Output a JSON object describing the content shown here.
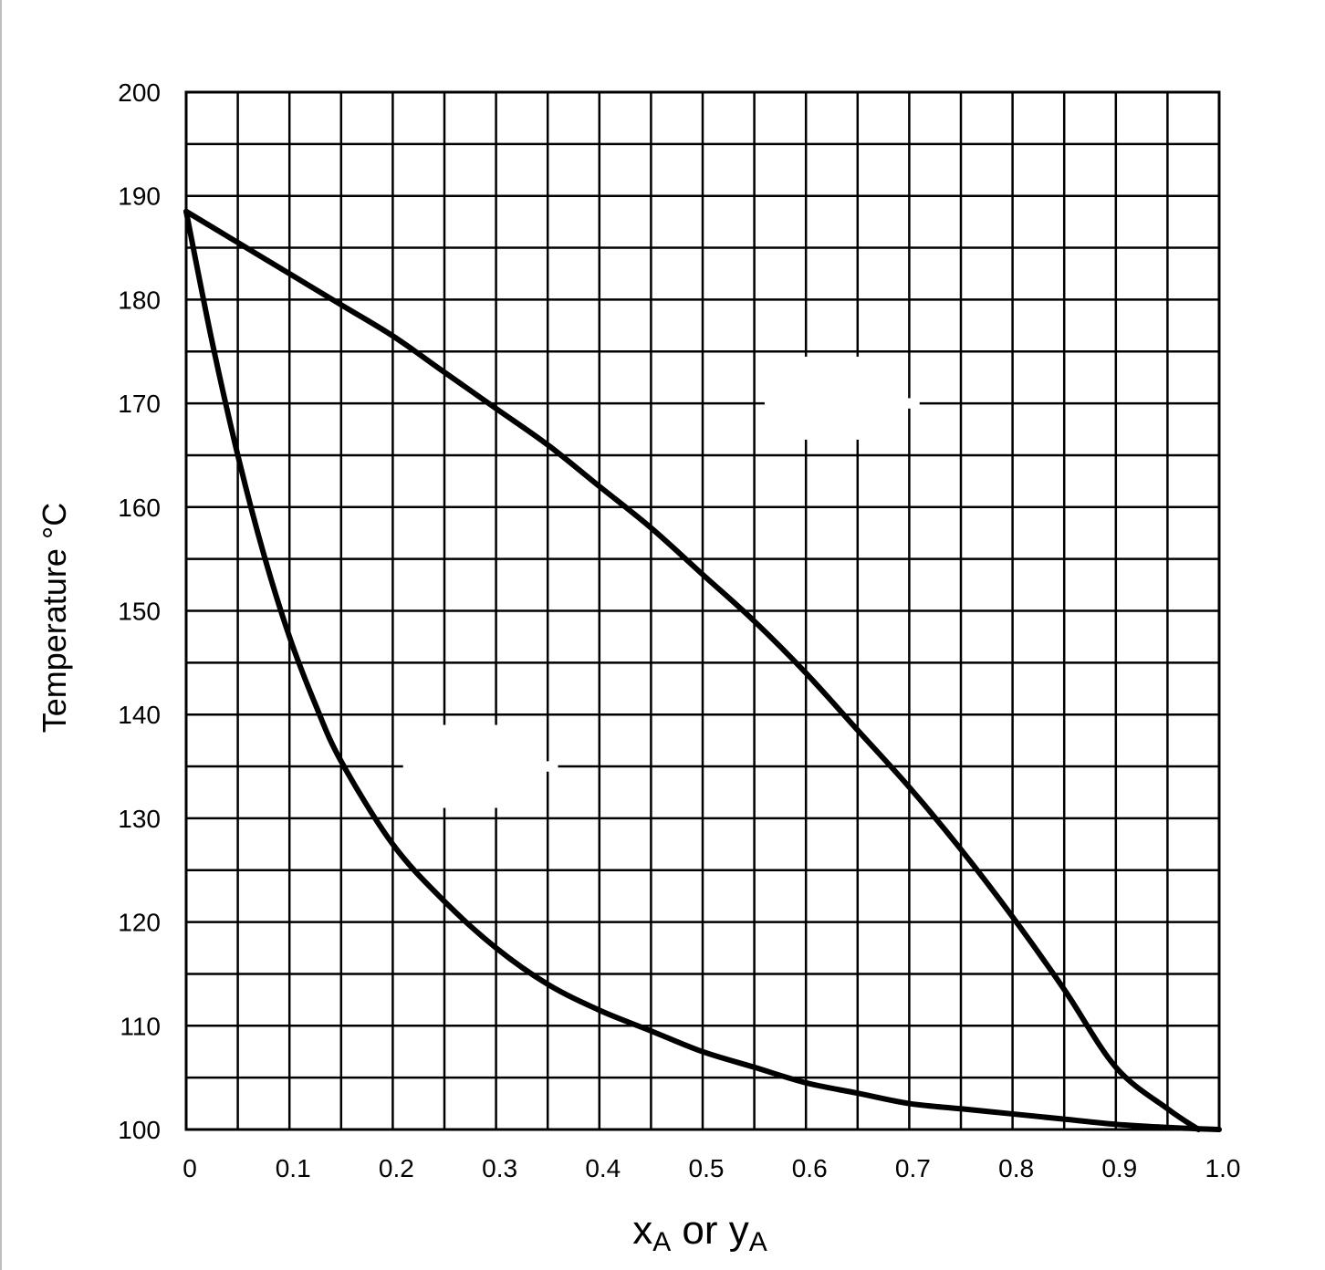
{
  "chart_data": {
    "type": "line",
    "title": "",
    "xlabel": {
      "x_main": "x",
      "x_sub": "A",
      "or": " or ",
      "y_main": "y",
      "y_sub": "A"
    },
    "ylabel": "Temperature °C",
    "xlim": [
      0,
      1.0
    ],
    "ylim": [
      100,
      200
    ],
    "x_ticks": [
      "0",
      "0.1",
      "0.2",
      "0.3",
      "0.4",
      "0.5",
      "0.6",
      "0.7",
      "0.8",
      "0.9",
      "1.0"
    ],
    "y_ticks": [
      "100",
      "110",
      "120",
      "130",
      "140",
      "150",
      "160",
      "170",
      "180",
      "190",
      "200"
    ],
    "grid": {
      "x_step": 0.05,
      "y_step": 5
    },
    "series": [
      {
        "points": [
          [
            0,
            188.5
          ],
          [
            0.05,
            185.5
          ],
          [
            0.1,
            182.5
          ],
          [
            0.15,
            179.5
          ],
          [
            0.2,
            176.5
          ],
          [
            0.25,
            173
          ],
          [
            0.3,
            169.5
          ],
          [
            0.35,
            166
          ],
          [
            0.4,
            162
          ],
          [
            0.45,
            158
          ],
          [
            0.5,
            153.5
          ],
          [
            0.55,
            149
          ],
          [
            0.6,
            144
          ],
          [
            0.65,
            138.5
          ],
          [
            0.7,
            133
          ],
          [
            0.75,
            127
          ],
          [
            0.8,
            120.5
          ],
          [
            0.85,
            113.5
          ],
          [
            0.9,
            106
          ],
          [
            0.95,
            102
          ],
          [
            0.98,
            100
          ]
        ]
      },
      {
        "points": [
          [
            0,
            188.5
          ],
          [
            0.025,
            176
          ],
          [
            0.05,
            165
          ],
          [
            0.075,
            155.5
          ],
          [
            0.1,
            147.5
          ],
          [
            0.125,
            141
          ],
          [
            0.15,
            135.5
          ],
          [
            0.2,
            127.5
          ],
          [
            0.25,
            122
          ],
          [
            0.3,
            117.5
          ],
          [
            0.35,
            114
          ],
          [
            0.4,
            111.5
          ],
          [
            0.45,
            109.5
          ],
          [
            0.5,
            107.5
          ],
          [
            0.55,
            106
          ],
          [
            0.6,
            104.5
          ],
          [
            0.65,
            103.5
          ],
          [
            0.7,
            102.5
          ],
          [
            0.75,
            102
          ],
          [
            0.8,
            101.5
          ],
          [
            0.85,
            101
          ],
          [
            0.9,
            100.5
          ],
          [
            0.95,
            100.2
          ],
          [
            1.0,
            100
          ]
        ]
      }
    ],
    "colors": {
      "line": "#000000",
      "grid": "#000000",
      "background": "#ffffff"
    }
  }
}
